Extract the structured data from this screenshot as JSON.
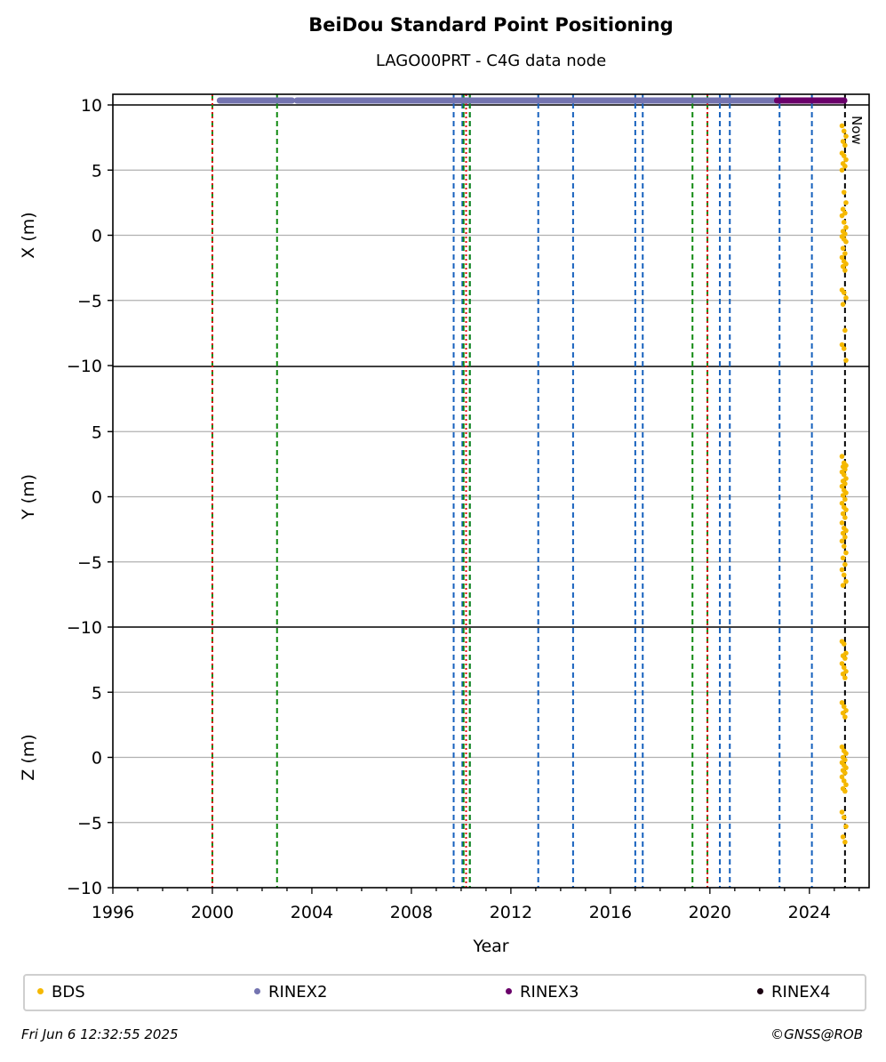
{
  "title": "BeiDou Standard Point Positioning",
  "subtitle": "LAGO00PRT - C4G data node",
  "footer": {
    "timestamp": "Fri Jun  6 12:32:55 2025",
    "credit": "©GNSS@ROB"
  },
  "chart_data": {
    "type": "scatter",
    "xlabel": "Year",
    "xlim": [
      1996,
      2026.4
    ],
    "xticks": [
      1996,
      2000,
      2004,
      2008,
      2012,
      2016,
      2020,
      2024
    ],
    "now_label": "Now",
    "now_x": 2025.43,
    "grid": "horizontal",
    "legend_position": "bottom",
    "panels": [
      {
        "ylabel": "X (m)",
        "ylim": [
          -10,
          10
        ],
        "yticks": [
          10,
          5,
          0,
          -5,
          -10
        ],
        "bds_points": [
          8.4,
          8.0,
          7.6,
          7.2,
          6.9,
          6.3,
          6.1,
          5.8,
          5.5,
          5.3,
          5.0,
          3.3,
          2.5,
          2.0,
          1.7,
          1.5,
          1.0,
          0.6,
          0.3,
          0.1,
          -0.1,
          -0.3,
          -0.5,
          -1.0,
          -1.4,
          -1.7,
          -2.0,
          -2.2,
          -2.4,
          -2.7,
          -4.2,
          -4.4,
          -4.8,
          -5.3,
          -7.3,
          -8.4,
          -8.7,
          -9.6
        ]
      },
      {
        "ylabel": "Y (m)",
        "ylim": [
          -10,
          10
        ],
        "yticks": [
          5,
          0,
          -5,
          -10
        ],
        "bds_points": [
          3.1,
          2.6,
          2.4,
          2.3,
          2.1,
          1.9,
          1.7,
          1.4,
          1.2,
          1.0,
          0.8,
          0.5,
          0.3,
          0.1,
          -0.2,
          -0.5,
          -0.8,
          -1.0,
          -1.3,
          -1.6,
          -2.0,
          -2.4,
          -2.6,
          -2.8,
          -3.1,
          -3.4,
          -3.8,
          -4.3,
          -4.7,
          -5.2,
          -5.6,
          -6.0,
          -6.5,
          -6.8
        ]
      },
      {
        "ylabel": "Z (m)",
        "ylim": [
          -10,
          10
        ],
        "yticks": [
          5,
          0,
          -5,
          -10
        ],
        "bds_points": [
          8.9,
          8.7,
          8.0,
          7.8,
          7.6,
          7.2,
          6.9,
          6.6,
          6.4,
          6.1,
          4.2,
          3.9,
          3.6,
          3.4,
          3.1,
          0.8,
          0.5,
          0.3,
          0.0,
          -0.2,
          -0.4,
          -0.6,
          -0.8,
          -1.0,
          -1.2,
          -1.5,
          -1.8,
          -2.1,
          -2.4,
          -2.6,
          -4.2,
          -4.6,
          -5.3,
          -6.1,
          -6.5
        ]
      }
    ],
    "rinex_bars": [
      {
        "name": "RINEX2",
        "color": "#7474b0",
        "ranges": [
          [
            2000.3,
            2003.2
          ],
          [
            2003.4,
            2025.4
          ]
        ]
      },
      {
        "name": "RINEX3",
        "color": "#6a006a",
        "ranges": [
          [
            2022.7,
            2025.4
          ]
        ]
      }
    ],
    "event_lines": {
      "red_dotted": [
        2000.0,
        2010.2,
        2019.9
      ],
      "green_dashed": [
        2000.0,
        2002.6,
        2010.1,
        2010.35,
        2019.3,
        2019.9
      ],
      "blue_dashed": [
        2009.7,
        2010.05,
        2010.35,
        2013.1,
        2014.5,
        2017.0,
        2017.3,
        2020.4,
        2020.8,
        2022.8,
        2024.1
      ]
    },
    "series": [
      {
        "name": "BDS",
        "color": "#f5b800"
      },
      {
        "name": "RINEX2",
        "color": "#7474b0"
      },
      {
        "name": "RINEX3",
        "color": "#6a006a"
      },
      {
        "name": "RINEX4",
        "color": "#1a0010"
      }
    ]
  }
}
